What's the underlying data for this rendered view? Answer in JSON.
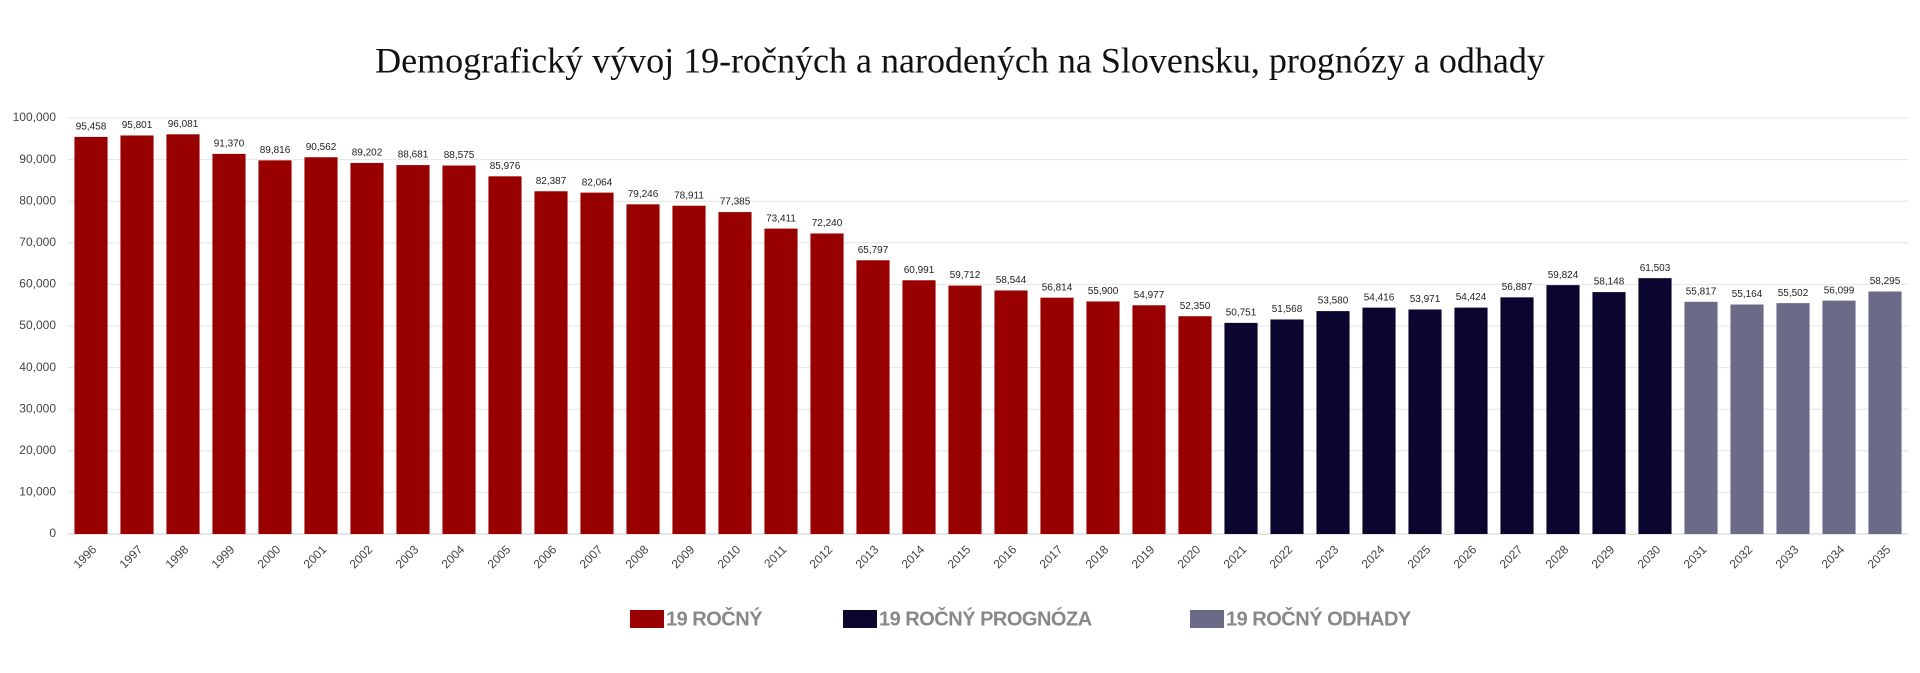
{
  "chart_data": {
    "type": "bar",
    "title": "Demografický vývoj 19-ročných a narodených na Slovensku, prognózy a odhady",
    "categories": [
      "1996",
      "1997",
      "1998",
      "1999",
      "2000",
      "2001",
      "2002",
      "2003",
      "2004",
      "2005",
      "2006",
      "2007",
      "2008",
      "2009",
      "2010",
      "2011",
      "2012",
      "2013",
      "2014",
      "2015",
      "2016",
      "2017",
      "2018",
      "2019",
      "2020",
      "2021",
      "2022",
      "2023",
      "2024",
      "2025",
      "2026",
      "2027",
      "2028",
      "2029",
      "2030",
      "2031",
      "2032",
      "2033",
      "2034",
      "2035"
    ],
    "series": [
      {
        "name": "19 ROČNÝ",
        "color": "#990000",
        "values": [
          95458,
          95801,
          96081,
          91370,
          89816,
          90562,
          89202,
          88681,
          88575,
          85976,
          82387,
          82064,
          79246,
          78911,
          77385,
          73411,
          72240,
          65797,
          60991,
          59712,
          58544,
          56814,
          55900,
          54977,
          52350,
          null,
          null,
          null,
          null,
          null,
          null,
          null,
          null,
          null,
          null,
          null,
          null,
          null,
          null,
          null
        ],
        "value_labels": [
          "95,458",
          "95,801",
          "96,081",
          "91,370",
          "89,816",
          "90,562",
          "89,202",
          "88,681",
          "88,575",
          "85,976",
          "82,387",
          "82,064",
          "79,246",
          "78,911",
          "77,385",
          "73,411",
          "72,240",
          "65,797",
          "60,991",
          "59,712",
          "58,544",
          "56,814",
          "55,900",
          "54,977",
          "52,350",
          null,
          null,
          null,
          null,
          null,
          null,
          null,
          null,
          null,
          null,
          null,
          null,
          null,
          null,
          null
        ]
      },
      {
        "name": "19 ROČNÝ PROGNÓZA",
        "color": "#0b0630",
        "values": [
          null,
          null,
          null,
          null,
          null,
          null,
          null,
          null,
          null,
          null,
          null,
          null,
          null,
          null,
          null,
          null,
          null,
          null,
          null,
          null,
          null,
          null,
          null,
          null,
          null,
          50751,
          51568,
          53580,
          54416,
          53971,
          54424,
          56887,
          59824,
          58148,
          61503,
          null,
          null,
          null,
          null,
          null
        ],
        "value_labels": [
          null,
          null,
          null,
          null,
          null,
          null,
          null,
          null,
          null,
          null,
          null,
          null,
          null,
          null,
          null,
          null,
          null,
          null,
          null,
          null,
          null,
          null,
          null,
          null,
          null,
          "50,751",
          "51,568",
          "53,580",
          "54,416",
          "53,971",
          "54,424",
          "56,887",
          "59,824",
          "58,148",
          "61,503",
          null,
          null,
          null,
          null,
          null
        ]
      },
      {
        "name": "19 ROČNÝ ODHADY",
        "color": "#6b6b87",
        "values": [
          null,
          null,
          null,
          null,
          null,
          null,
          null,
          null,
          null,
          null,
          null,
          null,
          null,
          null,
          null,
          null,
          null,
          null,
          null,
          null,
          null,
          null,
          null,
          null,
          null,
          null,
          null,
          null,
          null,
          null,
          null,
          null,
          null,
          null,
          null,
          55817,
          55164,
          55502,
          56099,
          58295
        ],
        "value_labels": [
          null,
          null,
          null,
          null,
          null,
          null,
          null,
          null,
          null,
          null,
          null,
          null,
          null,
          null,
          null,
          null,
          null,
          null,
          null,
          null,
          null,
          null,
          null,
          null,
          null,
          null,
          null,
          null,
          null,
          null,
          null,
          null,
          null,
          null,
          null,
          "55,817",
          "55,164",
          "55,502",
          "56,099",
          "58,295"
        ]
      }
    ],
    "ylim": [
      0,
      100000
    ],
    "yticks": [
      0,
      {
        "value": 10000,
        "label": "10,000"
      },
      {
        "value": 20000,
        "label": "20,000"
      },
      {
        "value": 30000,
        "label": "30,000"
      },
      {
        "value": 40000,
        "label": "40,000"
      },
      {
        "value": 50000,
        "label": "50,000"
      },
      {
        "value": 60000,
        "label": "60,000"
      },
      {
        "value": 70000,
        "label": "70,000"
      },
      {
        "value": 80000,
        "label": "80,000"
      },
      {
        "value": 90000,
        "label": "90,000"
      },
      {
        "value": 100000,
        "label": "100,000"
      }
    ],
    "grid": true,
    "legend": "bottom"
  }
}
